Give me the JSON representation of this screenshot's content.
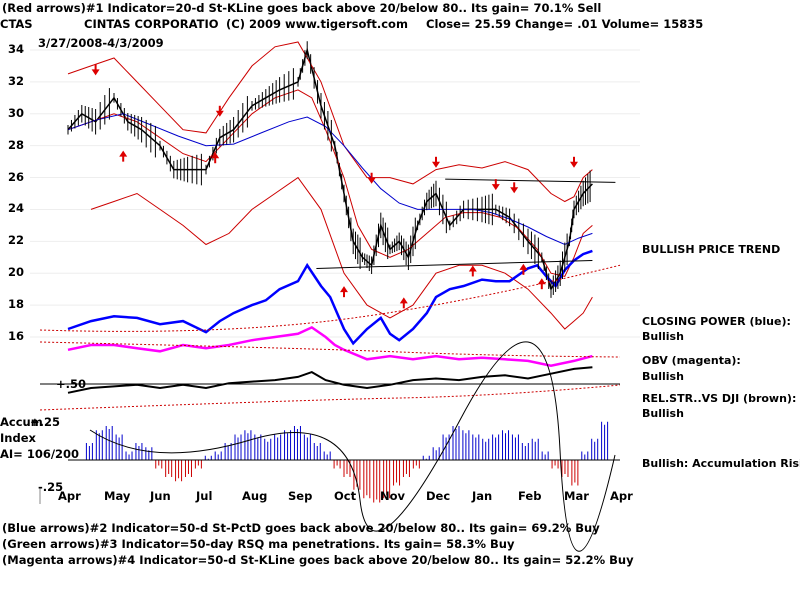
{
  "header": {
    "signal_1": "(Red arrows)#1 Indicator=20-d St-KLine goes back above 20/below 80.. Its gain= 70.1% Sell",
    "symbol": "CTAS",
    "company": "CINTAS CORPORATIO",
    "copyright": "(C) 2009 www.tigersoft.com",
    "quote": "Close=  25.59   Change= .01 Volume=  15835",
    "date_range": "3/27/2008-4/3/2009"
  },
  "indicator_panel": {
    "label_plus50": "+.50",
    "label_plus25": "+.25",
    "label_minus25": "-.25",
    "accum_label_1": "Accum",
    "accum_label_2": "Index",
    "accum_label_3": "AI= 106/200"
  },
  "side_notes": {
    "trend": "BULLISH PRICE TREND",
    "closing_power_title": "CLOSING POWER (blue):",
    "closing_power_value": "Bullish",
    "obv_title": "OBV (magenta):",
    "obv_value": "Bullish",
    "relstr_title": "REL.STR..VS DJI (brown):",
    "relstr_value": "Bullish",
    "accumulation": "Bullish: Accumulation Rising"
  },
  "footer": {
    "signal_2": "(Blue arrows)#2 Indicator=50-d St-PctD goes back above 20/below 80.. Its gain= 69.2% Buy",
    "signal_3": "(Green arrows)#3 Indicator=50-day RSQ ma penetrations. Its gain= 58.3% Buy",
    "signal_4": "(Magenta arrows)#4 Indicator=50-d St-KLine goes back above 20/below 80.. Its gain= 52.2% Buy"
  },
  "chart_data": {
    "type": "line",
    "y_ticks": [
      34,
      32,
      30,
      28,
      26,
      24,
      22,
      20,
      18,
      16
    ],
    "ylim": [
      15,
      35
    ],
    "months": [
      "Apr",
      "May",
      "Jun",
      "Jul",
      "Aug",
      "Sep",
      "Oct",
      "Nov",
      "Dec",
      "Jan",
      "Feb",
      "Mar",
      "Apr"
    ],
    "colors": {
      "price": "#000000",
      "upper_band": "#cc0000",
      "moving_average_red": "#cc0000",
      "moving_average_blue": "#0000cc",
      "closing_power": "#0000ff",
      "obv": "#ff00ff",
      "relative_strength": "#000000",
      "accum_positive": "#0000cc",
      "accum_negative": "#cc0000",
      "sell_arrow": "#dd0000",
      "buy_arrow": "#dd0000"
    },
    "series": [
      {
        "key": "price",
        "points": [
          [
            0,
            29
          ],
          [
            0.3,
            30
          ],
          [
            0.6,
            29.5
          ],
          [
            1,
            31
          ],
          [
            1.3,
            29.5
          ],
          [
            1.6,
            29
          ],
          [
            2,
            28
          ],
          [
            2.3,
            26.5
          ],
          [
            2.6,
            26.5
          ],
          [
            3,
            26.5
          ],
          [
            3.3,
            28.5
          ],
          [
            3.6,
            29
          ],
          [
            4,
            30.5
          ],
          [
            4.3,
            31
          ],
          [
            4.6,
            31.5
          ],
          [
            5,
            32
          ],
          [
            5.2,
            34
          ],
          [
            5.5,
            30.5
          ],
          [
            5.8,
            28
          ],
          [
            6,
            25
          ],
          [
            6.2,
            22
          ],
          [
            6.4,
            21
          ],
          [
            6.6,
            20.5
          ],
          [
            6.8,
            23
          ],
          [
            7,
            21.5
          ],
          [
            7.2,
            22
          ],
          [
            7.4,
            21
          ],
          [
            7.6,
            23
          ],
          [
            7.8,
            24.5
          ],
          [
            8,
            25
          ],
          [
            8.3,
            23
          ],
          [
            8.6,
            24
          ],
          [
            9,
            24
          ],
          [
            9.3,
            24
          ],
          [
            9.6,
            23.5
          ],
          [
            10,
            22
          ],
          [
            10.3,
            21
          ],
          [
            10.5,
            19
          ],
          [
            10.7,
            20
          ],
          [
            10.9,
            22
          ],
          [
            11,
            24
          ],
          [
            11.2,
            25
          ],
          [
            11.4,
            25.6
          ]
        ]
      },
      {
        "key": "upper_band",
        "points": [
          [
            0,
            32.5
          ],
          [
            0.5,
            33
          ],
          [
            1,
            33.5
          ],
          [
            1.5,
            32
          ],
          [
            2,
            30.5
          ],
          [
            2.5,
            29
          ],
          [
            3,
            28.8
          ],
          [
            3.5,
            31
          ],
          [
            4,
            33
          ],
          [
            4.5,
            34.2
          ],
          [
            5,
            34.5
          ],
          [
            5.5,
            32
          ],
          [
            6,
            28
          ],
          [
            6.5,
            26
          ],
          [
            7,
            26
          ],
          [
            7.5,
            25.6
          ],
          [
            8,
            26.5
          ],
          [
            8.5,
            26.8
          ],
          [
            9,
            26.6
          ],
          [
            9.5,
            27
          ],
          [
            10,
            26.5
          ],
          [
            10.5,
            25
          ],
          [
            10.8,
            24.5
          ],
          [
            11,
            24.8
          ],
          [
            11.2,
            26
          ],
          [
            11.4,
            26.5
          ]
        ]
      },
      {
        "key": "lower_band",
        "points": [
          [
            0.5,
            24
          ],
          [
            1,
            24.5
          ],
          [
            1.5,
            25
          ],
          [
            2,
            24
          ],
          [
            2.5,
            23
          ],
          [
            3,
            21.8
          ],
          [
            3.5,
            22.5
          ],
          [
            4,
            24
          ],
          [
            4.5,
            25
          ],
          [
            5,
            26
          ],
          [
            5.5,
            24
          ],
          [
            6,
            20
          ],
          [
            6.5,
            18
          ],
          [
            7,
            17.2
          ],
          [
            7.5,
            18
          ],
          [
            8,
            20
          ],
          [
            8.5,
            20.5
          ],
          [
            9,
            20.5
          ],
          [
            9.5,
            20
          ],
          [
            10,
            19
          ],
          [
            10.5,
            17.5
          ],
          [
            10.8,
            16.5
          ],
          [
            11,
            17
          ],
          [
            11.2,
            17.5
          ],
          [
            11.4,
            18.5
          ]
        ]
      },
      {
        "key": "moving_average_red",
        "points": [
          [
            0,
            29
          ],
          [
            0.5,
            29.5
          ],
          [
            1,
            30
          ],
          [
            1.5,
            29.5
          ],
          [
            2,
            28.5
          ],
          [
            2.5,
            27.5
          ],
          [
            3,
            27
          ],
          [
            3.5,
            28.5
          ],
          [
            4,
            30
          ],
          [
            4.5,
            31
          ],
          [
            5,
            31.5
          ],
          [
            5.3,
            31
          ],
          [
            5.6,
            29
          ],
          [
            6,
            26
          ],
          [
            6.3,
            23
          ],
          [
            6.6,
            21.5
          ],
          [
            7,
            21
          ],
          [
            7.4,
            21.5
          ],
          [
            7.8,
            22.5
          ],
          [
            8.2,
            23.5
          ],
          [
            8.6,
            23.8
          ],
          [
            9,
            23.8
          ],
          [
            9.4,
            23.5
          ],
          [
            9.8,
            22.8
          ],
          [
            10.2,
            21.5
          ],
          [
            10.5,
            20
          ],
          [
            10.8,
            19.8
          ],
          [
            11,
            21
          ],
          [
            11.2,
            22.5
          ],
          [
            11.4,
            23
          ]
        ]
      },
      {
        "key": "moving_average_blue",
        "points": [
          [
            0,
            29
          ],
          [
            0.6,
            29.6
          ],
          [
            1.2,
            30
          ],
          [
            1.8,
            29.3
          ],
          [
            2.4,
            28.6
          ],
          [
            3,
            28
          ],
          [
            3.6,
            28.1
          ],
          [
            4.2,
            28.8
          ],
          [
            4.8,
            29.5
          ],
          [
            5.2,
            29.8
          ],
          [
            5.6,
            29.2
          ],
          [
            6,
            28
          ],
          [
            6.4,
            26.6
          ],
          [
            6.8,
            25.3
          ],
          [
            7.2,
            24.4
          ],
          [
            7.6,
            24
          ],
          [
            8,
            24
          ],
          [
            8.4,
            24
          ],
          [
            8.8,
            24
          ],
          [
            9.2,
            23.8
          ],
          [
            9.6,
            23.4
          ],
          [
            10,
            22.9
          ],
          [
            10.4,
            22.3
          ],
          [
            10.8,
            21.8
          ],
          [
            11.1,
            22.2
          ],
          [
            11.4,
            22.5
          ]
        ]
      },
      {
        "key": "closing_power",
        "points": [
          [
            0,
            16.5
          ],
          [
            0.5,
            17
          ],
          [
            1,
            17.3
          ],
          [
            1.5,
            17.2
          ],
          [
            2,
            16.8
          ],
          [
            2.5,
            17
          ],
          [
            3,
            16.3
          ],
          [
            3.3,
            17
          ],
          [
            3.6,
            17.5
          ],
          [
            4,
            18
          ],
          [
            4.3,
            18.3
          ],
          [
            4.6,
            19
          ],
          [
            5,
            19.5
          ],
          [
            5.2,
            20.5
          ],
          [
            5.5,
            19.2
          ],
          [
            5.7,
            18.5
          ],
          [
            6,
            16.5
          ],
          [
            6.2,
            15.6
          ],
          [
            6.5,
            16.5
          ],
          [
            6.8,
            17.2
          ],
          [
            7,
            16.2
          ],
          [
            7.2,
            15.8
          ],
          [
            7.5,
            16.5
          ],
          [
            7.8,
            17.5
          ],
          [
            8,
            18.5
          ],
          [
            8.3,
            19
          ],
          [
            8.6,
            19.2
          ],
          [
            9,
            19.6
          ],
          [
            9.3,
            19.5
          ],
          [
            9.6,
            19.5
          ],
          [
            10,
            20.3
          ],
          [
            10.2,
            20.5
          ],
          [
            10.4,
            19.8
          ],
          [
            10.6,
            19.2
          ],
          [
            10.8,
            20.2
          ],
          [
            11,
            20.8
          ],
          [
            11.2,
            21.2
          ],
          [
            11.4,
            21.4
          ]
        ]
      },
      {
        "key": "obv",
        "points": [
          [
            0,
            15.2
          ],
          [
            0.5,
            15.5
          ],
          [
            1,
            15.5
          ],
          [
            1.5,
            15.3
          ],
          [
            2,
            15.1
          ],
          [
            2.5,
            15.5
          ],
          [
            3,
            15.3
          ],
          [
            3.5,
            15.5
          ],
          [
            4,
            15.8
          ],
          [
            4.5,
            16
          ],
          [
            5,
            16.2
          ],
          [
            5.3,
            16.6
          ],
          [
            5.6,
            16
          ],
          [
            5.8,
            15.5
          ],
          [
            6,
            15.2
          ],
          [
            6.5,
            14.6
          ],
          [
            7,
            14.8
          ],
          [
            7.5,
            14.6
          ],
          [
            8,
            14.8
          ],
          [
            8.5,
            14.6
          ],
          [
            9,
            14.7
          ],
          [
            9.5,
            14.6
          ],
          [
            10,
            14.5
          ],
          [
            10.5,
            14.2
          ],
          [
            11,
            14.5
          ],
          [
            11.4,
            14.8
          ]
        ]
      },
      {
        "key": "relative_strength",
        "points": [
          [
            0,
            12.5
          ],
          [
            0.5,
            12.8
          ],
          [
            1,
            12.9
          ],
          [
            1.5,
            13
          ],
          [
            2,
            12.8
          ],
          [
            2.5,
            13
          ],
          [
            3,
            12.8
          ],
          [
            3.5,
            13.1
          ],
          [
            4,
            13.2
          ],
          [
            4.5,
            13.3
          ],
          [
            5,
            13.5
          ],
          [
            5.3,
            13.8
          ],
          [
            5.6,
            13.3
          ],
          [
            6,
            13
          ],
          [
            6.5,
            12.8
          ],
          [
            7,
            13
          ],
          [
            7.5,
            13.3
          ],
          [
            8,
            13.4
          ],
          [
            8.5,
            13.3
          ],
          [
            9,
            13.5
          ],
          [
            9.5,
            13.6
          ],
          [
            10,
            13.4
          ],
          [
            10.5,
            13.7
          ],
          [
            11,
            14
          ],
          [
            11.4,
            14.1
          ]
        ]
      }
    ],
    "resistance_lines": [
      {
        "from": [
          8.2,
          25.9
        ],
        "to": [
          11.9,
          25.7
        ]
      },
      {
        "from": [
          5.4,
          20.3
        ],
        "to": [
          11.4,
          20.8
        ]
      }
    ],
    "sell_arrows_x": [
      0.6,
      3.3,
      6.6,
      8.0,
      9.3,
      9.7,
      11.0
    ],
    "buy_arrows_x": [
      1.2,
      3.2,
      6.0,
      7.3,
      8.8,
      9.9,
      10.3
    ],
    "accumulation_index": [
      0.2,
      0.35,
      0.4,
      0.3,
      0.1,
      0.2,
      0.15,
      -0.1,
      -0.2,
      -0.25,
      -0.2,
      -0.1,
      0.05,
      0.1,
      0.2,
      0.3,
      0.35,
      0.3,
      0.25,
      0.3,
      0.35,
      0.4,
      0.3,
      0.2,
      0.1,
      -0.1,
      -0.2,
      -0.35,
      -0.45,
      -0.5,
      -0.45,
      -0.3,
      -0.2,
      -0.1,
      0.05,
      0.15,
      0.3,
      0.4,
      0.35,
      0.3,
      0.25,
      0.3,
      0.35,
      0.3,
      0.2,
      0.25,
      0.1,
      -0.1,
      -0.2,
      -0.3,
      0.1,
      0.25,
      0.45
    ]
  }
}
